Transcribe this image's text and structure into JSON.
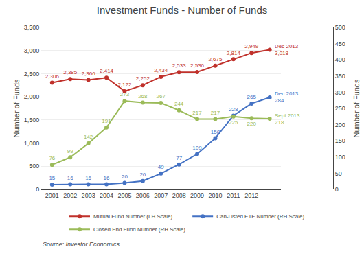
{
  "chart_data": {
    "type": "line",
    "title": "Investment Funds - Number of Funds",
    "ylabel": "Number of Funds",
    "y2label": "Number of Funds",
    "source": "Source: Investor Economics",
    "x": [
      2001,
      2002,
      2003,
      2004,
      2005,
      2006,
      2007,
      2008,
      2009,
      2010,
      2011,
      2012,
      2013
    ],
    "xlim": [
      2000.4,
      2013.6
    ],
    "xticks": [
      2001,
      2002,
      2003,
      2004,
      2005,
      2006,
      2007,
      2008,
      2009,
      2010,
      2011,
      2012
    ],
    "ylim": [
      0,
      3500
    ],
    "yticks": [
      0,
      500,
      {
        "value": 1000,
        "label": "1,000"
      },
      {
        "value": 1500,
        "label": "1,500"
      },
      {
        "value": 2000,
        "label": "2,000"
      },
      {
        "value": 2500,
        "label": "2,500"
      },
      {
        "value": 3000,
        "label": "3,000"
      },
      {
        "value": 3500,
        "label": "3,500"
      }
    ],
    "y2lim": [
      0,
      500
    ],
    "y2ticks": [
      0,
      50,
      100,
      150,
      200,
      250,
      300,
      350,
      400,
      450,
      500
    ],
    "grid": true,
    "legend": "bottom",
    "marker": "circle",
    "data_labels": true,
    "series": [
      {
        "name": "Mutual Fund Number (LH Scale)",
        "color": "#C0312B",
        "axis": "y",
        "values": [
          2306,
          2385,
          2366,
          2414,
          2122,
          2252,
          2434,
          2533,
          2536,
          2675,
          2814,
          2949,
          3018
        ],
        "value_labels": [
          "2,306",
          "2,385",
          "2,366",
          "2,414",
          "2,122",
          "2,252",
          "2,434",
          "2,533",
          "2,536",
          "2,675",
          "2,814",
          "2,949",
          null
        ]
      },
      {
        "name": "Can-Listed ETF Number (RH Scale)",
        "color": "#4472C4",
        "axis": "y2",
        "values": [
          15,
          16,
          16,
          16,
          20,
          26,
          49,
          77,
          109,
          158,
          228,
          265,
          284
        ],
        "value_labels": [
          "15",
          "16",
          "16",
          "16",
          "20",
          "26",
          "49",
          "77",
          "109",
          "158",
          "228",
          "265",
          null
        ]
      },
      {
        "name": "Closed End Fund Number (RH Scale)",
        "color": "#9BBB59",
        "axis": "y2",
        "values": [
          76,
          99,
          142,
          191,
          273,
          268,
          267,
          244,
          217,
          217,
          225,
          220,
          218
        ],
        "value_labels": [
          "76",
          "99",
          "142",
          "191",
          "273",
          "268",
          "267",
          "244",
          "217",
          "217",
          "225",
          "220",
          null
        ]
      }
    ],
    "annotations": [
      {
        "text": "Dec 2013\n3,018",
        "x": 2013,
        "y": 3018,
        "axis": "y",
        "color": "#C0312B"
      },
      {
        "text": "Dec 2013\n284",
        "x": 2013,
        "y": 284,
        "axis": "y2",
        "color": "#4472C4"
      },
      {
        "text": "Sept 2013\n218",
        "x": 2013,
        "y": 218,
        "axis": "y2",
        "color": "#9BBB59"
      }
    ]
  }
}
